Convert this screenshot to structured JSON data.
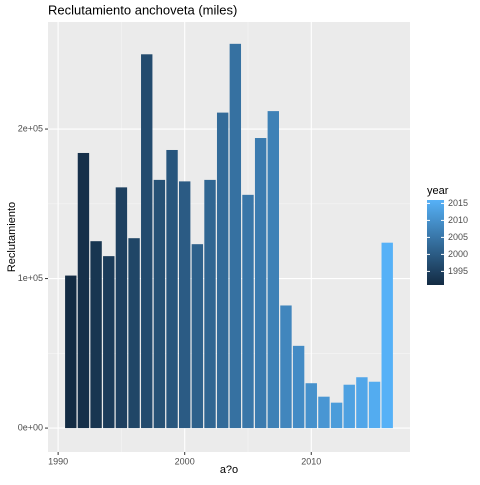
{
  "chart_data": {
    "type": "bar",
    "title": "Reclutamiento anchoveta (miles)",
    "xlabel": "a?o",
    "ylabel": "Reclutamiento",
    "x": [
      1991,
      1992,
      1993,
      1994,
      1995,
      1996,
      1997,
      1998,
      1999,
      2000,
      2001,
      2002,
      2003,
      2004,
      2005,
      2006,
      2007,
      2008,
      2009,
      2010,
      2011,
      2012,
      2013,
      2014,
      2015,
      2016
    ],
    "values": [
      102000,
      184000,
      125000,
      115000,
      161000,
      127000,
      250000,
      166000,
      186000,
      165000,
      123000,
      166000,
      211000,
      257000,
      156000,
      194000,
      212000,
      82000,
      55000,
      30000,
      21000,
      17000,
      29000,
      34000,
      31000,
      124000
    ],
    "xlim": [
      1989.2,
      2017.8
    ],
    "xticks": [
      1990,
      2000,
      2010
    ],
    "ylim": [
      -16000,
      271600
    ],
    "yticks": [
      {
        "value": 0,
        "label": "0e+00"
      },
      {
        "value": 100000,
        "label": "1e+05"
      },
      {
        "value": 200000,
        "label": "2e+05"
      }
    ],
    "grid": true,
    "legend": {
      "title": "year",
      "lim": [
        1991,
        2016
      ],
      "ticks": [
        1995,
        2000,
        2005,
        2010,
        2015
      ],
      "color_low": "#132B43",
      "color_high": "#56B1F7",
      "position": "right"
    }
  }
}
